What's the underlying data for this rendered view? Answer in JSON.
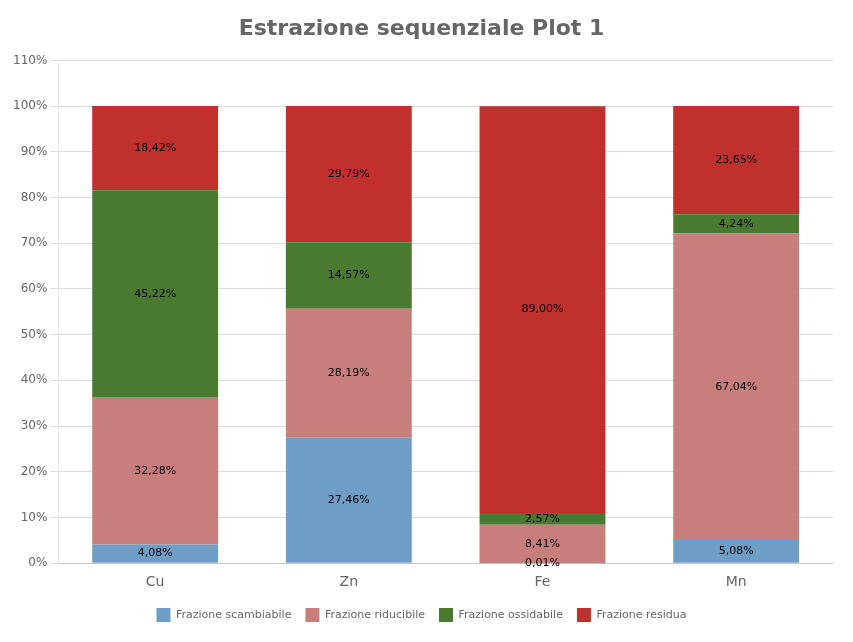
{
  "chart_data": {
    "type": "bar",
    "title": "Estrazione sequenziale Plot 1",
    "categories": [
      "Cu",
      "Zn",
      "Fe",
      "Mn"
    ],
    "series": [
      {
        "name": "Frazione scambiabile",
        "color": "#6E9EC6",
        "values": [
          4.08,
          27.46,
          0.01,
          5.08
        ],
        "value_labels": [
          "4,08%",
          "27,46%",
          "0,01%",
          "5,08%"
        ]
      },
      {
        "name": "Frazione riducibile",
        "color": "#C97E7E",
        "values": [
          32.28,
          28.19,
          8.41,
          67.04
        ],
        "value_labels": [
          "32,28%",
          "28,19%",
          "8,41%",
          "67,04%"
        ]
      },
      {
        "name": "Frazione ossidabile",
        "color": "#4A7A30",
        "values": [
          45.22,
          14.57,
          2.57,
          4.24
        ],
        "value_labels": [
          "45,22%",
          "14,57%",
          "2,57%",
          "4,24%"
        ]
      },
      {
        "name": "Frazione residua",
        "color": "#C0302D",
        "values": [
          18.42,
          29.79,
          89.0,
          23.65
        ],
        "value_labels": [
          "18,42%",
          "29,79%",
          "89,00%",
          "23,65%"
        ]
      }
    ],
    "stacked": true,
    "data_labels": true,
    "ylim": [
      0,
      110
    ],
    "yticks": [
      {
        "value": 0,
        "label": "0%"
      },
      {
        "value": 10,
        "label": "10%"
      },
      {
        "value": 20,
        "label": "20%"
      },
      {
        "value": 30,
        "label": "30%"
      },
      {
        "value": 40,
        "label": "40%"
      },
      {
        "value": 50,
        "label": "50%"
      },
      {
        "value": 60,
        "label": "60%"
      },
      {
        "value": 70,
        "label": "70%"
      },
      {
        "value": 80,
        "label": "80%"
      },
      {
        "value": 90,
        "label": "90%"
      },
      {
        "value": 100,
        "label": "100%"
      },
      {
        "value": 110,
        "label": "110%"
      }
    ],
    "grid": true,
    "legend": "bottom"
  }
}
